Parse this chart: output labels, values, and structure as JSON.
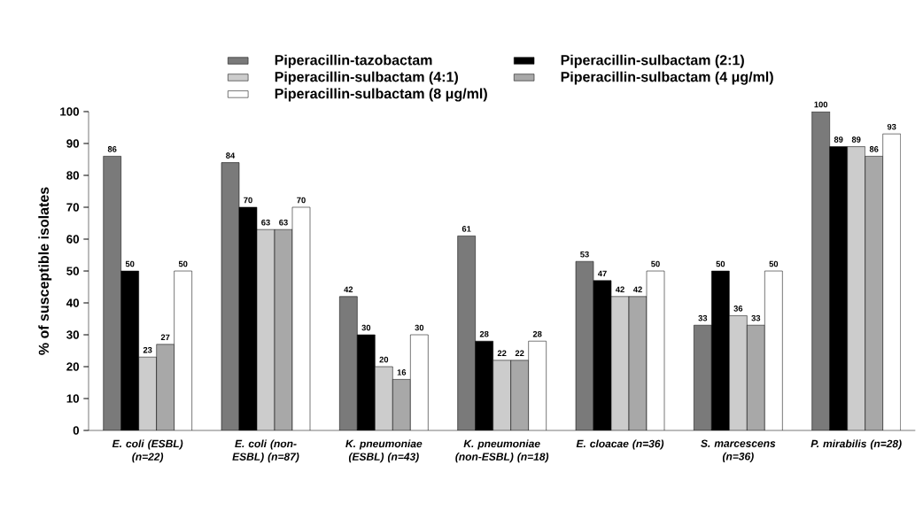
{
  "chart_data": {
    "type": "bar",
    "ylabel": "% of susceptible isolates",
    "categories": [
      "E. coli (ESBL) (n=22)",
      "E. coli (non-ESBL) (n=87)",
      "K. pneumoniae (ESBL) (n=43)",
      "K. pneumoniae (non-ESBL) (n=18)",
      "E. cloacae (n=36)",
      "S. marcescens (n=36)",
      "P. mirabilis (n=28)"
    ],
    "series": [
      {
        "name": "Piperacillin-tazobactam",
        "color": "#7a7a7a",
        "values": [
          86,
          84,
          42,
          61,
          53,
          33,
          100
        ]
      },
      {
        "name": "Piperacillin-sulbactam (2:1)",
        "color": "#000000",
        "values": [
          50,
          70,
          30,
          28,
          47,
          50,
          89
        ]
      },
      {
        "name": "Piperacillin-sulbactam (4:1)",
        "color": "#cccccc",
        "values": [
          23,
          63,
          20,
          22,
          42,
          36,
          89
        ]
      },
      {
        "name": "Piperacillin-sulbactam (4 μg/ml)",
        "color": "#a8a8a8",
        "values": [
          27,
          63,
          16,
          22,
          42,
          33,
          86
        ]
      },
      {
        "name": "Piperacillin-sulbactam (8 μg/ml)",
        "color": "#ffffff",
        "values": [
          50,
          70,
          30,
          28,
          50,
          50,
          93
        ]
      }
    ],
    "ylim": [
      0,
      100
    ],
    "yticks": [
      0,
      10,
      20,
      30,
      40,
      50,
      60,
      70,
      80,
      90,
      100
    ],
    "data_labels": true,
    "legend": "top",
    "grid": false
  }
}
